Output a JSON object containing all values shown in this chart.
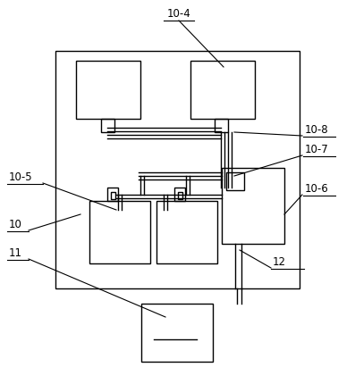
{
  "bg_color": "#ffffff",
  "line_color": "#000000",
  "text_color": "#000000",
  "figsize": [
    3.97,
    4.3
  ],
  "dpi": 100
}
